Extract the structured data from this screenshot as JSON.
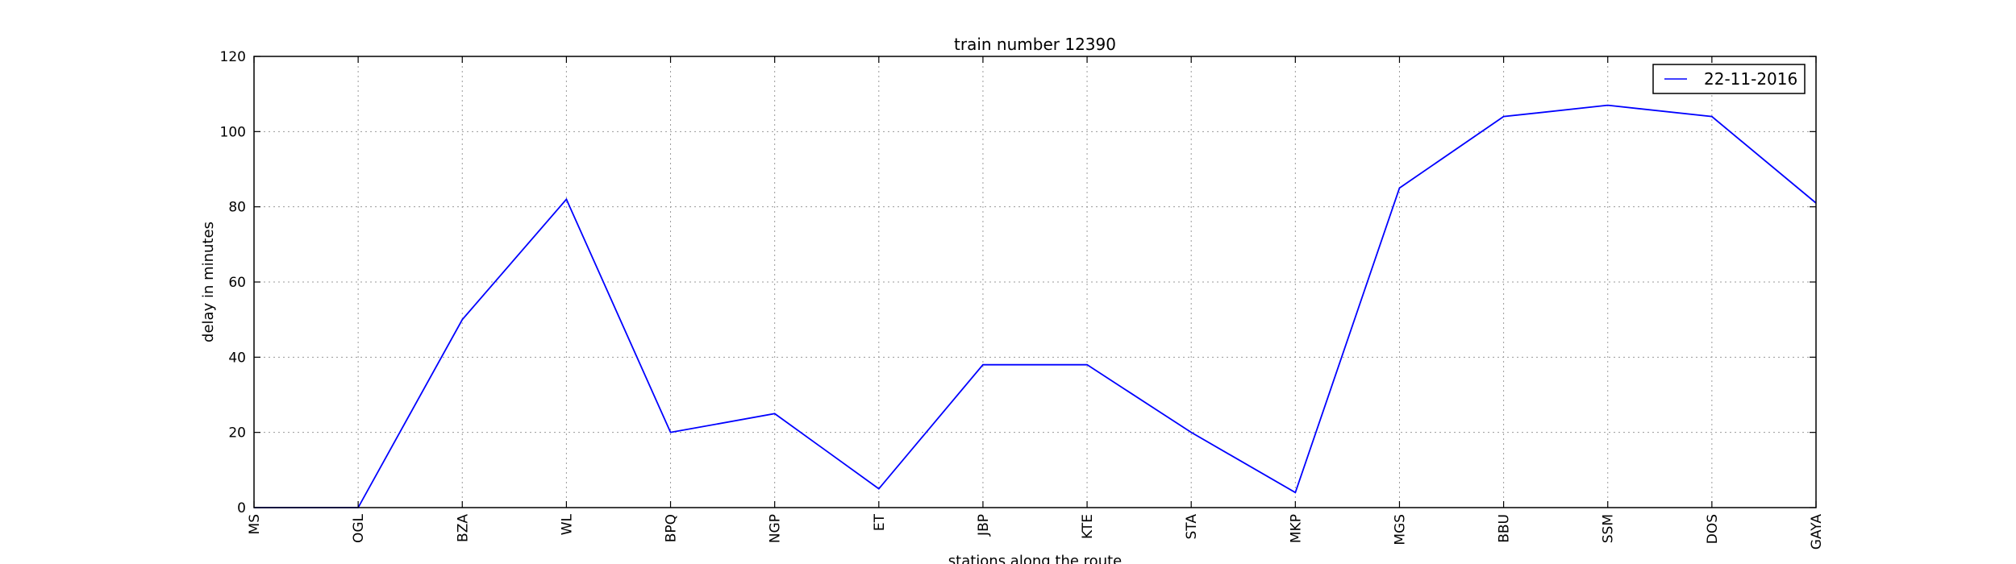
{
  "chart_data": {
    "type": "line",
    "title": "train number 12390",
    "xlabel": "stations along the route",
    "ylabel": "delay in minutes",
    "categories": [
      "MS",
      "OGL",
      "BZA",
      "WL",
      "BPQ",
      "NGP",
      "ET",
      "JBP",
      "KTE",
      "STA",
      "MKP",
      "MGS",
      "BBU",
      "SSM",
      "DOS",
      "GAYA"
    ],
    "series": [
      {
        "name": "22-11-2016",
        "color": "#0000ff",
        "values": [
          0,
          0,
          50,
          82,
          20,
          25,
          5,
          38,
          38,
          20,
          4,
          85,
          104,
          107,
          104,
          81
        ]
      }
    ],
    "ylim": [
      0,
      120
    ],
    "yticks": [
      0,
      20,
      40,
      60,
      80,
      100,
      120
    ],
    "grid": true,
    "legend_position": "top-right"
  }
}
